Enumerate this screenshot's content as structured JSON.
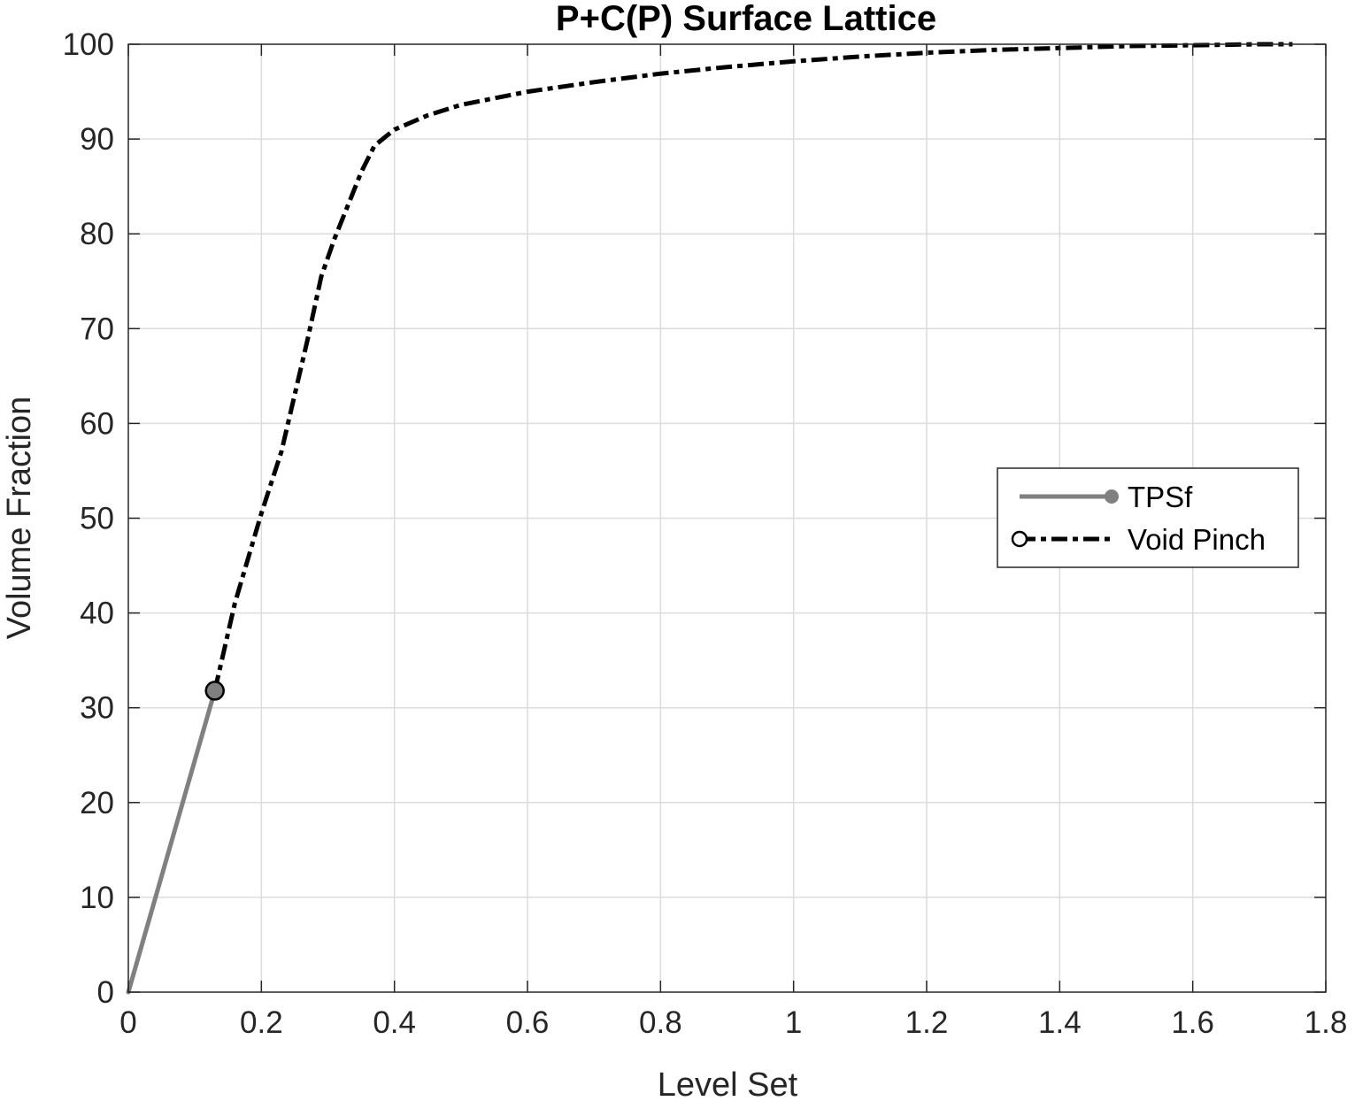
{
  "chart_data": {
    "type": "line",
    "title": "P+C(P) Surface Lattice",
    "xlabel": "Level Set",
    "ylabel": "Volume Fraction",
    "xlim": [
      0,
      1.8
    ],
    "ylim": [
      0,
      100
    ],
    "xticks": [
      0,
      0.2,
      0.4,
      0.6,
      0.8,
      1,
      1.2,
      1.4,
      1.6,
      1.8
    ],
    "xtick_labels": [
      "0",
      "0.2",
      "0.4",
      "0.6",
      "0.8",
      "1",
      "1.2",
      "1.4",
      "1.6",
      "1.8"
    ],
    "yticks": [
      0,
      10,
      20,
      30,
      40,
      50,
      60,
      70,
      80,
      90,
      100
    ],
    "ytick_labels": [
      "0",
      "10",
      "20",
      "30",
      "40",
      "50",
      "60",
      "70",
      "80",
      "90",
      "100"
    ],
    "grid": true,
    "legend_position": "center-right",
    "series": [
      {
        "name": "TPSf",
        "color": "#808080",
        "line_style": "solid",
        "marker": "filled-circle",
        "x": [
          0,
          0.13
        ],
        "y": [
          0,
          31.8
        ]
      },
      {
        "name": "Void Pinch",
        "color": "#000000",
        "line_style": "dash-dot",
        "marker": "open-circle",
        "x": [
          0.13,
          0.16,
          0.2,
          0.23,
          0.25,
          0.27,
          0.29,
          0.31,
          0.33,
          0.35,
          0.37,
          0.4,
          0.45,
          0.5,
          0.6,
          0.7,
          0.8,
          0.9,
          1.0,
          1.1,
          1.2,
          1.3,
          1.4,
          1.5,
          1.6,
          1.7,
          1.75
        ],
        "y": [
          31.8,
          41,
          50.5,
          57,
          63,
          69,
          75.5,
          79.5,
          83,
          86.5,
          89.3,
          91,
          92.5,
          93.6,
          95,
          96,
          96.9,
          97.6,
          98.2,
          98.7,
          99.1,
          99.4,
          99.6,
          99.8,
          99.9,
          100,
          100
        ]
      }
    ],
    "highlight_point": {
      "x": 0.13,
      "y": 31.8,
      "color": "#808080"
    }
  }
}
